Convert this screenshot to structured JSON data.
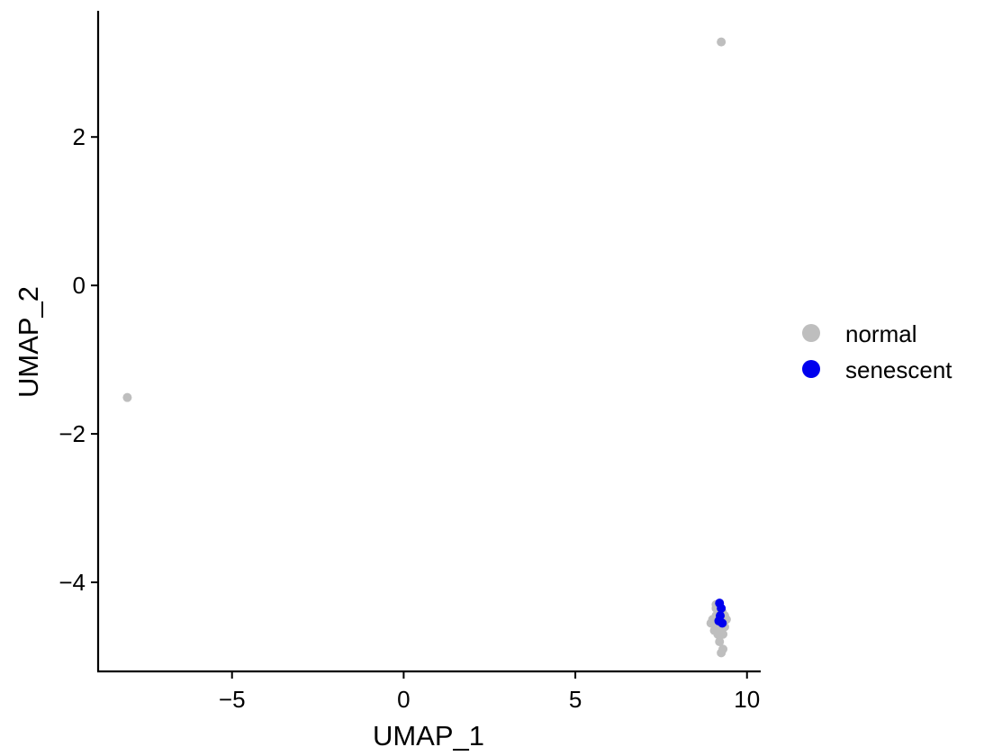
{
  "chart_data": {
    "type": "scatter",
    "xlabel": "UMAP_1",
    "ylabel": "UMAP_2",
    "xlim": [
      -8.9,
      10.4
    ],
    "ylim": [
      -5.2,
      3.7
    ],
    "x_ticks": [
      -5,
      0,
      5,
      10
    ],
    "y_ticks": [
      -4,
      -2,
      0,
      2
    ],
    "x_tick_labels": [
      "−5",
      "0",
      "5",
      "10"
    ],
    "y_tick_labels": [
      "−4",
      "−2",
      "0",
      "2"
    ],
    "grid": false,
    "legend_position": "right",
    "series": [
      {
        "name": "normal",
        "color": "#bebebe",
        "points": [
          [
            9.25,
            3.28
          ],
          [
            -8.05,
            -1.51
          ],
          [
            9.0,
            -4.5
          ],
          [
            9.05,
            -4.55
          ],
          [
            9.1,
            -4.45
          ],
          [
            9.15,
            -4.6
          ],
          [
            9.2,
            -4.5
          ],
          [
            9.3,
            -4.55
          ],
          [
            9.35,
            -4.45
          ],
          [
            9.4,
            -4.5
          ],
          [
            9.1,
            -4.35
          ],
          [
            9.2,
            -4.4
          ],
          [
            9.15,
            -4.7
          ],
          [
            9.25,
            -4.65
          ],
          [
            9.05,
            -4.65
          ],
          [
            9.3,
            -4.7
          ],
          [
            9.2,
            -4.8
          ],
          [
            9.25,
            -4.95
          ],
          [
            9.3,
            -4.9
          ],
          [
            9.1,
            -4.3
          ],
          [
            9.35,
            -4.6
          ],
          [
            8.95,
            -4.55
          ],
          [
            9.15,
            -4.5
          ],
          [
            9.2,
            -4.62
          ],
          [
            9.28,
            -4.4
          ],
          [
            9.12,
            -4.58
          ]
        ]
      },
      {
        "name": "senescent",
        "color": "#0000ee",
        "points": [
          [
            9.2,
            -4.28
          ],
          [
            9.25,
            -4.35
          ],
          [
            9.22,
            -4.45
          ],
          [
            9.28,
            -4.55
          ],
          [
            9.18,
            -4.52
          ]
        ]
      }
    ]
  }
}
